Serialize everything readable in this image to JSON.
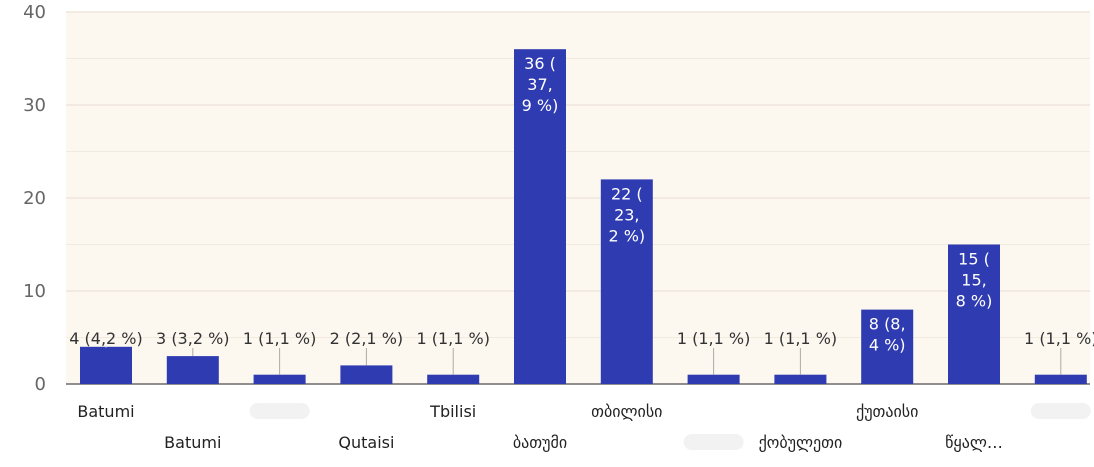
{
  "chart_data": {
    "type": "bar",
    "categories": [
      "Batumi",
      "Batumi",
      "",
      "Qutaisi",
      "Tbilisi",
      "ბათუმი",
      "თბილისი",
      "",
      "ქობულეთი",
      "ქუთაისი",
      "წყალ…",
      ""
    ],
    "category_label_row": [
      "top",
      "bottom",
      "top",
      "bottom",
      "top",
      "bottom",
      "top",
      "bottom",
      "bottom",
      "top",
      "bottom",
      "top"
    ],
    "values": [
      4,
      3,
      1,
      2,
      1,
      36,
      22,
      1,
      1,
      8,
      15,
      1
    ],
    "data_labels": [
      "4 (4,2 %)",
      "3 (3,2 %)",
      "1 (1,1 %)",
      "2 (2,1 %)",
      "1 (1,1 %)",
      "36 ( 37, 9 %)",
      "22 ( 23, 2 %)",
      "1 (1,1 %)",
      "1 (1,1 %)",
      "8 (8, 4 %)",
      "15 ( 15, 8 %)",
      "1 (1,1 %)"
    ],
    "y_ticks": [
      "0",
      "10",
      "20",
      "30",
      "40"
    ],
    "ylim": [
      0,
      40
    ],
    "grid": true,
    "colors": {
      "bar": "#2f3bb0",
      "plot_background": "#fcf7ef",
      "gridline": "#ebe3d6",
      "axis": "#6b6b6b"
    }
  }
}
